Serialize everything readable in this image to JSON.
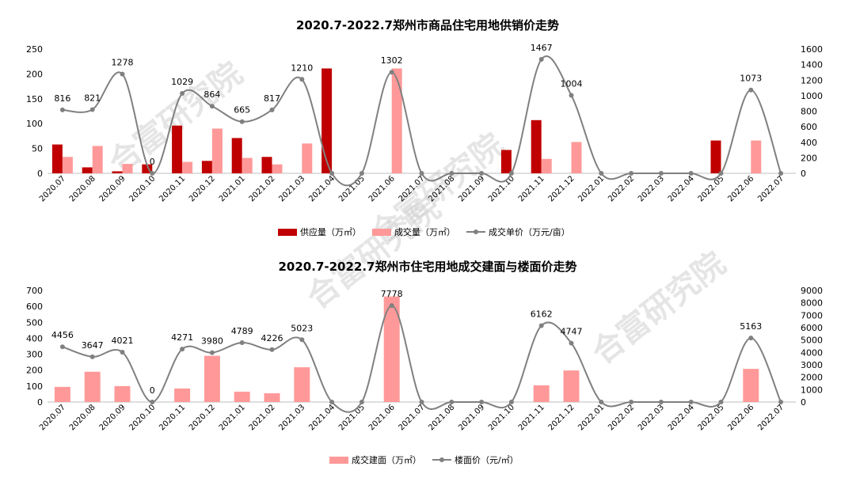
{
  "chart_data": [
    {
      "type": "bar+line",
      "title": "2020.7-2022.7郑州市商品住宅用地供销价走势",
      "categories": [
        "2020.07",
        "2020.08",
        "2020.09",
        "2020.10",
        "2020.11",
        "2020.12",
        "2021.01",
        "2021.02",
        "2021.03",
        "2021.04",
        "2021.05",
        "2021.06",
        "2021.07",
        "2021.08",
        "2021.09",
        "2021.10",
        "2021.11",
        "2021.12",
        "2022.01",
        "2022.02",
        "2022.03",
        "2022.04",
        "2022.05",
        "2022.06",
        "2022.07"
      ],
      "left_ylim": [
        0,
        250
      ],
      "left_yticks": [
        0,
        50,
        100,
        150,
        200,
        250
      ],
      "right_ylim": [
        0,
        1600
      ],
      "right_yticks": [
        0,
        200,
        400,
        600,
        800,
        1000,
        1200,
        1400,
        1600
      ],
      "series": [
        {
          "name": "供应量（万㎡）",
          "kind": "bar",
          "axis": "left",
          "color": "#c00000",
          "values": [
            58,
            12,
            4,
            18,
            96,
            25,
            71,
            33,
            0,
            211,
            0,
            0,
            0,
            0,
            0,
            47,
            107,
            0,
            0,
            0,
            0,
            0,
            66,
            0,
            0
          ]
        },
        {
          "name": "成交量（万㎡）",
          "kind": "bar",
          "axis": "left",
          "color": "#ff9999",
          "values": [
            33,
            55,
            19,
            0,
            23,
            90,
            31,
            18,
            60,
            0,
            0,
            211,
            0,
            0,
            0,
            0,
            29,
            63,
            0,
            0,
            0,
            0,
            0,
            66,
            0
          ]
        },
        {
          "name": "成交单价（万元/亩）",
          "kind": "line",
          "axis": "right",
          "color": "#808080",
          "values": [
            816,
            821,
            1278,
            0,
            1029,
            864,
            665,
            817,
            1210,
            0,
            0,
            1302,
            0,
            0,
            0,
            0,
            1467,
            1004,
            0,
            0,
            0,
            0,
            0,
            1073,
            0
          ],
          "labels": [
            "816",
            "821",
            "1278",
            "0",
            "1029",
            "864",
            "665",
            "817",
            "1210",
            "",
            "",
            "1302",
            "",
            "",
            "",
            "",
            "1467",
            "1004",
            "",
            "",
            "",
            "",
            "",
            "1073",
            ""
          ]
        }
      ],
      "legend_position": "bottom"
    },
    {
      "type": "bar+line",
      "title": "2020.7-2022.7郑州市住宅用地成交建面与楼面价走势",
      "categories": [
        "2020.07",
        "2020.08",
        "2020.09",
        "2020.10",
        "2020.11",
        "2020.12",
        "2021.01",
        "2021.02",
        "2021.03",
        "2021.04",
        "2021.05",
        "2021.06",
        "2021.07",
        "2021.08",
        "2021.09",
        "2021.10",
        "2021.11",
        "2021.12",
        "2022.01",
        "2022.02",
        "2022.03",
        "2022.04",
        "2022.05",
        "2022.06",
        "2022.07"
      ],
      "left_ylim": [
        0,
        700
      ],
      "left_yticks": [
        0,
        100,
        200,
        300,
        400,
        500,
        600,
        700
      ],
      "right_ylim": [
        0,
        9000
      ],
      "right_yticks": [
        0,
        1000,
        2000,
        3000,
        4000,
        5000,
        6000,
        7000,
        8000,
        9000
      ],
      "series": [
        {
          "name": "成交建面（万㎡）",
          "kind": "bar",
          "axis": "left",
          "color": "#ff9999",
          "values": [
            95,
            190,
            100,
            0,
            85,
            290,
            65,
            55,
            218,
            0,
            0,
            662,
            0,
            0,
            0,
            0,
            105,
            198,
            0,
            0,
            0,
            0,
            0,
            208,
            0
          ]
        },
        {
          "name": "楼面价（元/㎡）",
          "kind": "line",
          "axis": "right",
          "color": "#808080",
          "values": [
            4456,
            3647,
            4021,
            0,
            4271,
            3980,
            4789,
            4226,
            5023,
            0,
            0,
            7778,
            0,
            0,
            0,
            0,
            6162,
            4747,
            0,
            0,
            0,
            0,
            0,
            5163,
            0
          ],
          "labels": [
            "4456",
            "3647",
            "4021",
            "0",
            "4271",
            "3980",
            "4789",
            "4226",
            "5023",
            "",
            "",
            "7778",
            "",
            "",
            "",
            "",
            "6162",
            "4747",
            "",
            "",
            "",
            "",
            "",
            "5163",
            ""
          ]
        }
      ],
      "legend_position": "bottom"
    }
  ],
  "watermark": "合富研究院"
}
